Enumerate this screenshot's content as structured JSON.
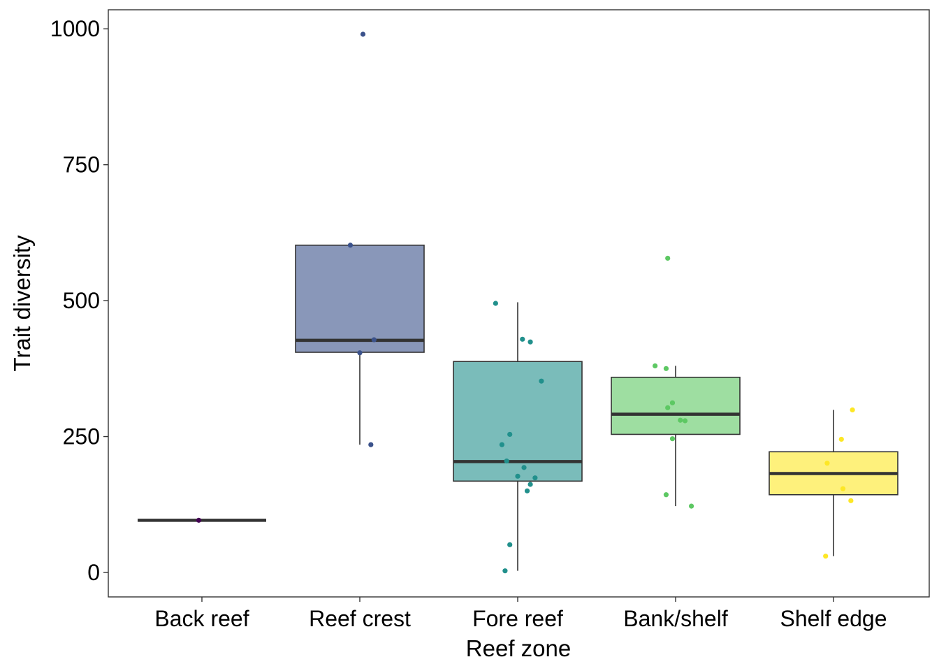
{
  "chart_data": {
    "type": "boxplot",
    "xlabel": "Reef zone",
    "ylabel": "Trait diversity",
    "ylim": [
      -45,
      1035
    ],
    "yticks": [
      0,
      250,
      500,
      750,
      1000
    ],
    "grid": false,
    "legend": "none",
    "categories": [
      "Back reef",
      "Reef crest",
      "Fore reef",
      "Bank/shelf",
      "Shelf edge"
    ],
    "boxes": [
      {
        "category": "Back reef",
        "color": "#440154",
        "q1": 96,
        "median": 96,
        "q3": 96,
        "whisker_low": 96,
        "whisker_high": 96
      },
      {
        "category": "Reef crest",
        "color": "#3B528B",
        "q1": 405,
        "median": 427,
        "q3": 602,
        "whisker_low": 235,
        "whisker_high": 602
      },
      {
        "category": "Fore reef",
        "color": "#21908C",
        "q1": 168,
        "median": 204,
        "q3": 388,
        "whisker_low": 3,
        "whisker_high": 497
      },
      {
        "category": "Bank/shelf",
        "color": "#5DC863",
        "q1": 254,
        "median": 291,
        "q3": 359,
        "whisker_low": 122,
        "whisker_high": 380
      },
      {
        "category": "Shelf edge",
        "color": "#FDE725",
        "q1": 143,
        "median": 182,
        "q3": 222,
        "whisker_low": 30,
        "whisker_high": 299
      }
    ],
    "points": [
      {
        "category": "Back reef",
        "jitter": -0.02,
        "value": 96
      },
      {
        "category": "Reef crest",
        "jitter": 0.02,
        "value": 990
      },
      {
        "category": "Reef crest",
        "jitter": -0.06,
        "value": 602
      },
      {
        "category": "Reef crest",
        "jitter": 0.09,
        "value": 428
      },
      {
        "category": "Reef crest",
        "jitter": 0.0,
        "value": 404
      },
      {
        "category": "Reef crest",
        "jitter": 0.07,
        "value": 235
      },
      {
        "category": "Fore reef",
        "jitter": -0.14,
        "value": 495
      },
      {
        "category": "Fore reef",
        "jitter": 0.03,
        "value": 429
      },
      {
        "category": "Fore reef",
        "jitter": 0.08,
        "value": 424
      },
      {
        "category": "Fore reef",
        "jitter": 0.15,
        "value": 352
      },
      {
        "category": "Fore reef",
        "jitter": -0.05,
        "value": 254
      },
      {
        "category": "Fore reef",
        "jitter": -0.1,
        "value": 235
      },
      {
        "category": "Fore reef",
        "jitter": -0.07,
        "value": 205
      },
      {
        "category": "Fore reef",
        "jitter": 0.04,
        "value": 193
      },
      {
        "category": "Fore reef",
        "jitter": 0.11,
        "value": 174
      },
      {
        "category": "Fore reef",
        "jitter": 0.0,
        "value": 177
      },
      {
        "category": "Fore reef",
        "jitter": 0.08,
        "value": 162
      },
      {
        "category": "Fore reef",
        "jitter": 0.06,
        "value": 150
      },
      {
        "category": "Fore reef",
        "jitter": -0.05,
        "value": 51
      },
      {
        "category": "Fore reef",
        "jitter": -0.08,
        "value": 3
      },
      {
        "category": "Bank/shelf",
        "jitter": -0.05,
        "value": 578
      },
      {
        "category": "Bank/shelf",
        "jitter": -0.13,
        "value": 380
      },
      {
        "category": "Bank/shelf",
        "jitter": -0.06,
        "value": 375
      },
      {
        "category": "Bank/shelf",
        "jitter": -0.02,
        "value": 312
      },
      {
        "category": "Bank/shelf",
        "jitter": -0.05,
        "value": 303
      },
      {
        "category": "Bank/shelf",
        "jitter": 0.03,
        "value": 280
      },
      {
        "category": "Bank/shelf",
        "jitter": 0.06,
        "value": 279
      },
      {
        "category": "Bank/shelf",
        "jitter": -0.02,
        "value": 246
      },
      {
        "category": "Bank/shelf",
        "jitter": -0.06,
        "value": 143
      },
      {
        "category": "Bank/shelf",
        "jitter": 0.1,
        "value": 122
      },
      {
        "category": "Shelf edge",
        "jitter": 0.12,
        "value": 299
      },
      {
        "category": "Shelf edge",
        "jitter": 0.05,
        "value": 245
      },
      {
        "category": "Shelf edge",
        "jitter": -0.04,
        "value": 201
      },
      {
        "category": "Shelf edge",
        "jitter": 0.06,
        "value": 154
      },
      {
        "category": "Shelf edge",
        "jitter": 0.11,
        "value": 132
      },
      {
        "category": "Shelf edge",
        "jitter": -0.05,
        "value": 30
      }
    ]
  }
}
